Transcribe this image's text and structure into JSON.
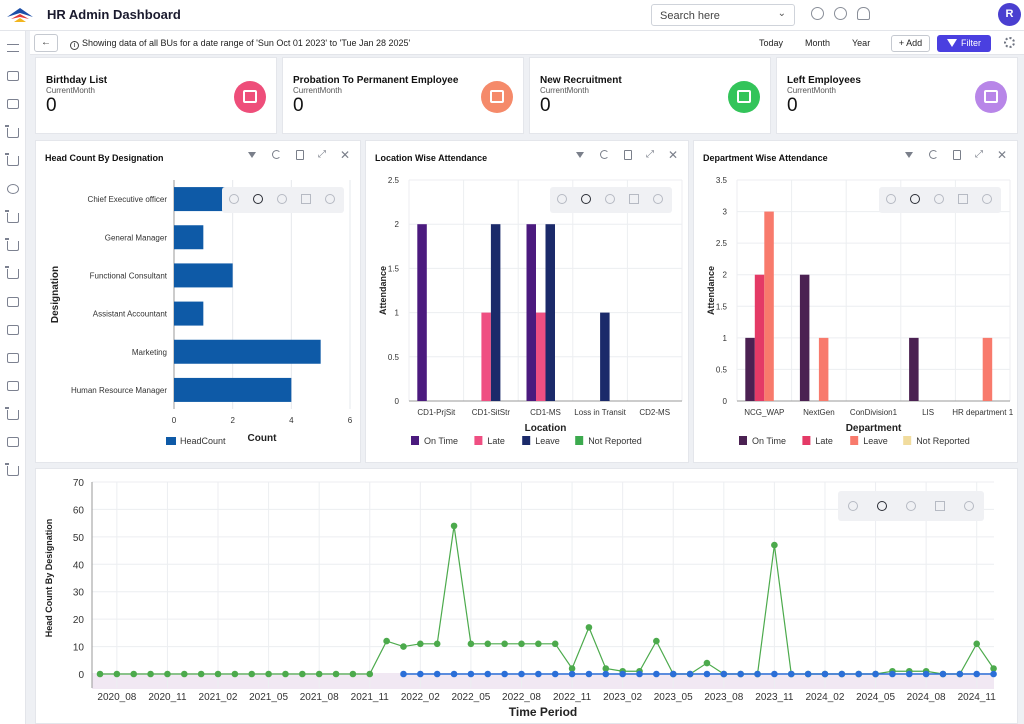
{
  "header": {
    "title": "HR Admin Dashboard",
    "search_placeholder": "Search here",
    "avatar_initial": "R"
  },
  "filterbar": {
    "back_label": "←",
    "range_text": "Showing data of all BUs for a date range of 'Sun Oct 01 2023' to 'Tue Jan 28 2025'",
    "periods": [
      "Today",
      "Month",
      "Year"
    ],
    "add_label": "+ Add",
    "filter_label": "Filter"
  },
  "kpis": [
    {
      "title": "Birthday List",
      "subtitle": "CurrentMonth",
      "value": "0",
      "color": "#ee4e7a",
      "icon": "cake-icon"
    },
    {
      "title": "Probation To Permanent Employee",
      "subtitle": "CurrentMonth",
      "value": "0",
      "color": "#f58a6a",
      "icon": "employee-badge-icon"
    },
    {
      "title": "New Recruitment",
      "subtitle": "CurrentMonth",
      "value": "0",
      "color": "#33c45a",
      "icon": "add-user-icon"
    },
    {
      "title": "Left Employees",
      "subtitle": "CurrentMonth",
      "value": "0",
      "color": "#b886e8",
      "icon": "remove-user-icon"
    }
  ],
  "panels": {
    "headcount": {
      "title": "Head Count By Designation"
    },
    "location": {
      "title": "Location Wise Attendance"
    },
    "department": {
      "title": "Department Wise Attendance"
    }
  },
  "chart_data": [
    {
      "type": "bar",
      "orientation": "horizontal",
      "categories": [
        "Chief Executive officer",
        "General Manager",
        "Functional Consultant",
        "Assistant Accountant",
        "Marketing",
        "Human Resource Manager"
      ],
      "series": [
        {
          "name": "HeadCount",
          "values": [
            2,
            1,
            2,
            1,
            5,
            4
          ]
        }
      ],
      "xlabel": "Count",
      "ylabel": "Designation",
      "xlim": [
        0,
        6
      ],
      "xticks": [
        0,
        2,
        4,
        6
      ],
      "colors": [
        "#0e5aa7"
      ],
      "legend_position": "bottom"
    },
    {
      "type": "bar",
      "categories": [
        "CD1-PrjSit",
        "CD1-SitStr",
        "CD1-MS",
        "Loss in Transit",
        "CD2-MS"
      ],
      "series": [
        {
          "name": "On Time",
          "values": [
            2,
            0,
            2,
            0,
            0
          ]
        },
        {
          "name": "Late",
          "values": [
            0,
            1,
            1,
            0,
            0
          ]
        },
        {
          "name": "Leave",
          "values": [
            0,
            2,
            2,
            1,
            0
          ]
        },
        {
          "name": "Not Reported",
          "values": [
            0,
            0,
            0,
            0,
            0
          ]
        }
      ],
      "xlabel": "Location",
      "ylabel": "Attendance",
      "ylim": [
        0,
        2.5
      ],
      "yticks": [
        "0",
        "0.5",
        "1",
        "1.5",
        "2",
        "2.5"
      ],
      "colors": [
        "#4b1a7e",
        "#ef4f82",
        "#1b2a6a",
        "#3caa4e"
      ],
      "legend_position": "bottom"
    },
    {
      "type": "bar",
      "categories": [
        "NCG_WAP",
        "NextGen",
        "ConDivision1",
        "LIS",
        "HR department 1"
      ],
      "series": [
        {
          "name": "On Time",
          "values": [
            1,
            2,
            0,
            1,
            0
          ]
        },
        {
          "name": "Late",
          "values": [
            2,
            0,
            0,
            0,
            0
          ]
        },
        {
          "name": "Leave",
          "values": [
            3,
            1,
            0,
            0,
            1
          ]
        },
        {
          "name": "Not Reported",
          "values": [
            0,
            0,
            0,
            0,
            0
          ]
        }
      ],
      "xlabel": "Department",
      "ylabel": "Attendance",
      "ylim": [
        0,
        3.5
      ],
      "yticks": [
        "0",
        "0.5",
        "1",
        "1.5",
        "2",
        "2.5",
        "3",
        "3.5"
      ],
      "colors": [
        "#4b2152",
        "#e43a66",
        "#f87a6c",
        "#f1dc9e"
      ],
      "legend_position": "bottom"
    },
    {
      "type": "line",
      "x_start": "2020_06",
      "x_end": "2025_01",
      "xticks": [
        "2020_08",
        "2020_11",
        "2021_02",
        "2021_05",
        "2021_08",
        "2021_11",
        "2022_02",
        "2022_05",
        "2022_08",
        "2022_11",
        "2023_02",
        "2023_05",
        "2023_08",
        "2023_11",
        "2024_02",
        "2024_05",
        "2024_08",
        "2024_11"
      ],
      "xlabel": "Time Period",
      "ylabel": "Head Count By Designation",
      "ylim": [
        0,
        70
      ],
      "yticks": [
        0,
        10,
        20,
        30,
        40,
        50,
        60,
        70
      ],
      "series": [
        {
          "color": "#4caa4c",
          "values": [
            0,
            0,
            0,
            0,
            0,
            0,
            0,
            0,
            0,
            0,
            0,
            0,
            0,
            0,
            0,
            0,
            0,
            12,
            10,
            11,
            11,
            54,
            11,
            11,
            11,
            11,
            11,
            11,
            2,
            17,
            2,
            1,
            1,
            12,
            0,
            0,
            4,
            0,
            0,
            0,
            47,
            0,
            0,
            0,
            0,
            0,
            0,
            1,
            1,
            1,
            0,
            0,
            11,
            2
          ]
        },
        {
          "color": "#2b6fd8",
          "start_index": 18,
          "values": [
            0,
            0,
            0,
            0,
            0,
            0,
            0,
            0,
            0,
            0,
            0,
            0,
            0,
            0,
            0,
            0,
            0,
            0,
            0,
            0,
            0,
            0,
            0,
            0,
            0,
            0,
            0,
            0,
            0,
            0,
            0,
            0,
            0,
            0,
            0,
            0
          ]
        }
      ]
    }
  ]
}
